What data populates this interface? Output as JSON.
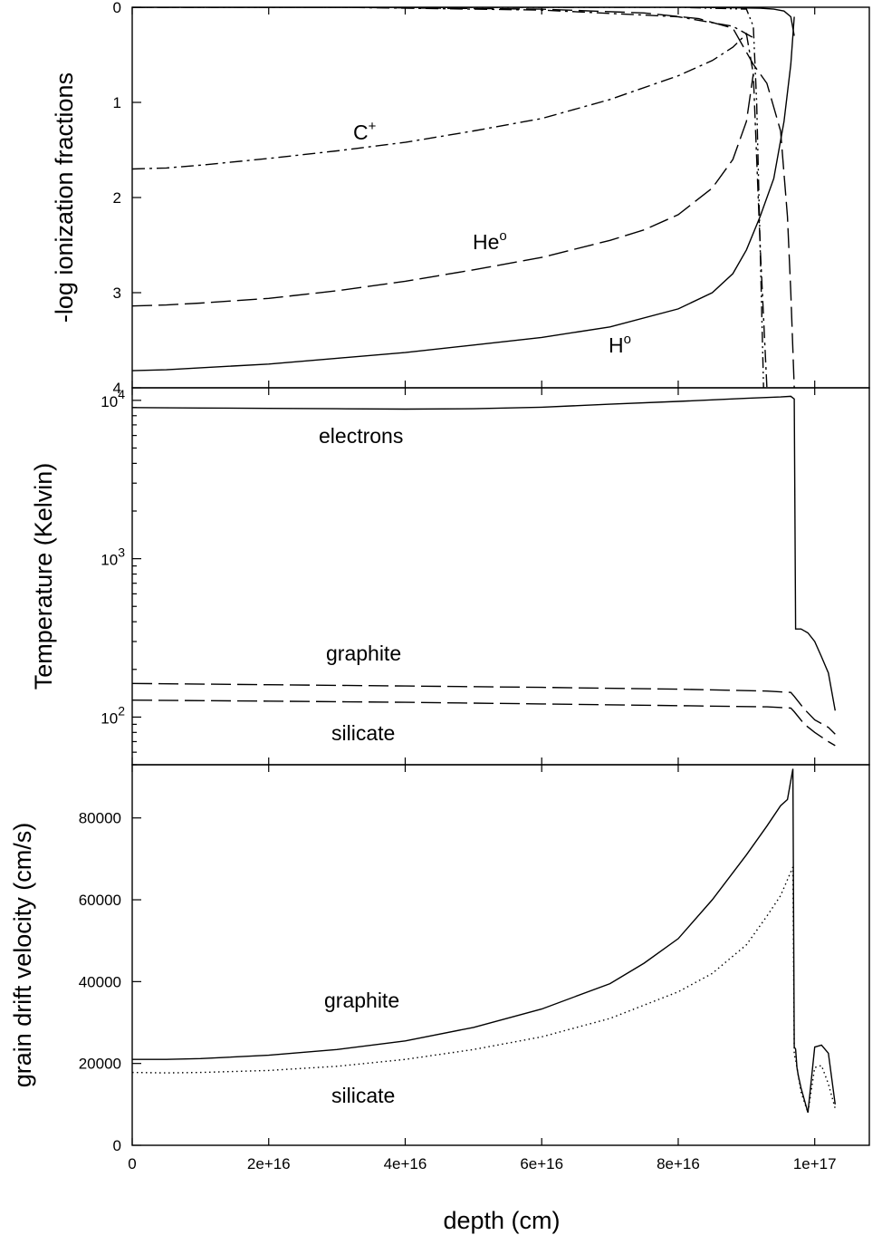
{
  "x_axis_label": "depth (cm)",
  "chart_data": [
    {
      "type": "line",
      "ylabel": "-log ionization fractions",
      "ylim": [
        4,
        0
      ],
      "y_inverted": true,
      "y_ticks": [
        "0",
        "1",
        "2",
        "3",
        "4"
      ],
      "annotations": [
        {
          "base": "C",
          "sup": "+",
          "series": "C+"
        },
        {
          "base": "He",
          "sup": "o",
          "series": "He0"
        },
        {
          "base": "H",
          "sup": "o",
          "series": "H0"
        }
      ],
      "series": [
        {
          "id": "H0",
          "dash": "solid",
          "x": [
            0,
            5000000000000000.0,
            1e+16,
            2e+16,
            3e+16,
            4e+16,
            5e+16,
            6e+16,
            7e+16,
            8e+16,
            8.5e+16,
            8.8e+16,
            9e+16,
            9.2e+16,
            9.4e+16,
            9.55e+16,
            9.65e+16,
            9.7e+16
          ],
          "y": [
            3.82,
            3.81,
            3.79,
            3.75,
            3.69,
            3.63,
            3.55,
            3.47,
            3.36,
            3.17,
            3.0,
            2.8,
            2.55,
            2.2,
            1.8,
            1.2,
            0.6,
            0.1
          ]
        },
        {
          "id": "H+",
          "dash": "solid",
          "x": [
            0,
            8e+16,
            8.8e+16,
            9.2e+16,
            9.4e+16,
            9.55e+16,
            9.65e+16,
            9.7e+16
          ],
          "y": [
            0.0,
            0.0,
            0.005,
            0.01,
            0.02,
            0.04,
            0.1,
            0.3
          ]
        },
        {
          "id": "He0",
          "dash": "dashed",
          "x": [
            0,
            5000000000000000.0,
            1e+16,
            2e+16,
            3e+16,
            4e+16,
            5e+16,
            6e+16,
            7e+16,
            7.5e+16,
            8e+16,
            8.5e+16,
            8.8e+16,
            9e+16,
            9.1e+16
          ],
          "y": [
            3.14,
            3.13,
            3.11,
            3.06,
            2.98,
            2.88,
            2.76,
            2.63,
            2.45,
            2.34,
            2.18,
            1.9,
            1.6,
            1.2,
            0.7
          ]
        },
        {
          "id": "He+",
          "dash": "dashed",
          "x": [
            0,
            3e+16,
            6e+16,
            7.5e+16,
            8.3e+16,
            8.8e+16,
            9.1e+16,
            9.3e+16,
            9.5e+16,
            9.6e+16,
            9.65e+16,
            9.7e+16
          ],
          "y": [
            0.0,
            0.0,
            0.02,
            0.06,
            0.12,
            0.22,
            0.6,
            0.8,
            1.3,
            2.2,
            3.0,
            4.0
          ]
        },
        {
          "id": "C+",
          "dash": "dashdot",
          "x": [
            0,
            5000000000000000.0,
            1e+16,
            2e+16,
            3e+16,
            4e+16,
            5e+16,
            6e+16,
            7e+16,
            8e+16,
            8.5e+16,
            8.8e+16,
            9e+16,
            9.1e+16,
            9.2e+16,
            9.3e+16
          ],
          "y": [
            1.7,
            1.69,
            1.66,
            1.59,
            1.51,
            1.42,
            1.3,
            1.17,
            0.97,
            0.72,
            0.56,
            0.42,
            0.28,
            0.7,
            2.5,
            4.0
          ]
        },
        {
          "id": "C++",
          "dash": "dashdot",
          "x": [
            0,
            3e+16,
            6e+16,
            8e+16,
            8.8e+16,
            9.1e+16
          ],
          "y": [
            0.0,
            0.0,
            0.03,
            0.1,
            0.2,
            0.32
          ]
        },
        {
          "id": "other",
          "dash": "dashdotdot",
          "x": [
            0,
            8e+16,
            9e+16,
            9.1e+16,
            9.15e+16,
            9.2e+16,
            9.25e+16
          ],
          "y": [
            0.0,
            0.0,
            0.02,
            0.2,
            1.0,
            2.5,
            4.0
          ]
        }
      ]
    },
    {
      "type": "line",
      "ylabel": "Temperature (Kelvin)",
      "yscale": "log",
      "ylim": [
        50,
        12000
      ],
      "y_ticks": [
        {
          "base": "10",
          "exp": "2"
        },
        {
          "base": "10",
          "exp": "3"
        },
        {
          "base": "10",
          "exp": "4"
        }
      ],
      "annotations": [
        "electrons",
        "graphite",
        "silicate"
      ],
      "series": [
        {
          "name": "electrons",
          "dash": "solid",
          "x": [
            0,
            1e+16,
            2e+16,
            3e+16,
            4e+16,
            5e+16,
            6e+16,
            7e+16,
            8e+16,
            9e+16,
            9.5e+16,
            9.65e+16,
            9.7e+16,
            9.72e+16,
            9.8e+16,
            9.9e+16,
            1e+17,
            1.01e+17,
            1.02e+17,
            1.03e+17
          ],
          "y": [
            9000,
            8950,
            8900,
            8850,
            8800,
            8850,
            9050,
            9450,
            9850,
            10300,
            10500,
            10600,
            10200,
            360,
            360,
            340,
            300,
            240,
            190,
            110
          ]
        },
        {
          "name": "graphite",
          "dash": "dashed",
          "x": [
            0,
            2e+16,
            4e+16,
            6e+16,
            8e+16,
            9.3e+16,
            9.65e+16,
            9.7e+16,
            9.85e+16,
            1e+17,
            1.02e+17,
            1.03e+17
          ],
          "y": [
            163,
            160,
            157,
            154,
            150,
            146,
            143,
            135,
            112,
            96,
            86,
            78
          ]
        },
        {
          "name": "silicate",
          "dash": "dashed",
          "x": [
            0,
            2e+16,
            4e+16,
            6e+16,
            8e+16,
            9.3e+16,
            9.65e+16,
            9.7e+16,
            9.85e+16,
            1e+17,
            1.02e+17,
            1.03e+17
          ],
          "y": [
            128,
            126,
            124,
            121,
            118,
            116,
            114,
            108,
            90,
            80,
            70,
            66
          ]
        }
      ]
    },
    {
      "type": "line",
      "ylabel": "grain drift velocity (cm/s)",
      "ylim": [
        0,
        93000
      ],
      "xlim": [
        0,
        1.08e+17
      ],
      "x_ticks": [
        "0",
        "2e+16",
        "4e+16",
        "6e+16",
        "8e+16",
        "1e+17"
      ],
      "y_ticks": [
        "0",
        "20000",
        "40000",
        "60000",
        "80000"
      ],
      "annotations": [
        "graphite",
        "silicate"
      ],
      "series": [
        {
          "name": "graphite",
          "dash": "solid",
          "x": [
            0,
            5000000000000000.0,
            1e+16,
            2e+16,
            3e+16,
            4e+16,
            5e+16,
            6e+16,
            7e+16,
            7.5e+16,
            8e+16,
            8.5e+16,
            9e+16,
            9.3e+16,
            9.5e+16,
            9.6e+16,
            9.68e+16,
            9.7e+16,
            9.72e+16,
            9.74e+16,
            9.76e+16,
            9.8e+16,
            9.9e+16,
            1e+17,
            1.01e+17,
            1.02e+17,
            1.03e+17
          ],
          "y": [
            21000,
            21000,
            21200,
            22000,
            23400,
            25500,
            28800,
            33300,
            39500,
            44500,
            50500,
            60000,
            71000,
            78000,
            83000,
            84500,
            92000,
            24000,
            23500,
            19000,
            17000,
            14000,
            8000,
            24000,
            24500,
            22500,
            10000
          ]
        },
        {
          "name": "silicate",
          "dash": "dotted",
          "x": [
            0,
            5000000000000000.0,
            1e+16,
            2e+16,
            3e+16,
            4e+16,
            5e+16,
            6e+16,
            7e+16,
            8e+16,
            8.5e+16,
            9e+16,
            9.3e+16,
            9.5e+16,
            9.68e+16,
            9.7e+16,
            9.72e+16,
            9.8e+16,
            9.9e+16,
            1e+17,
            1.01e+17,
            1.02e+17,
            1.03e+17
          ],
          "y": [
            17800,
            17700,
            17800,
            18300,
            19300,
            21000,
            23400,
            26500,
            31000,
            37500,
            42000,
            49000,
            56000,
            61000,
            68000,
            22000,
            21000,
            13000,
            8000,
            19000,
            19500,
            15000,
            9000
          ]
        }
      ]
    }
  ]
}
